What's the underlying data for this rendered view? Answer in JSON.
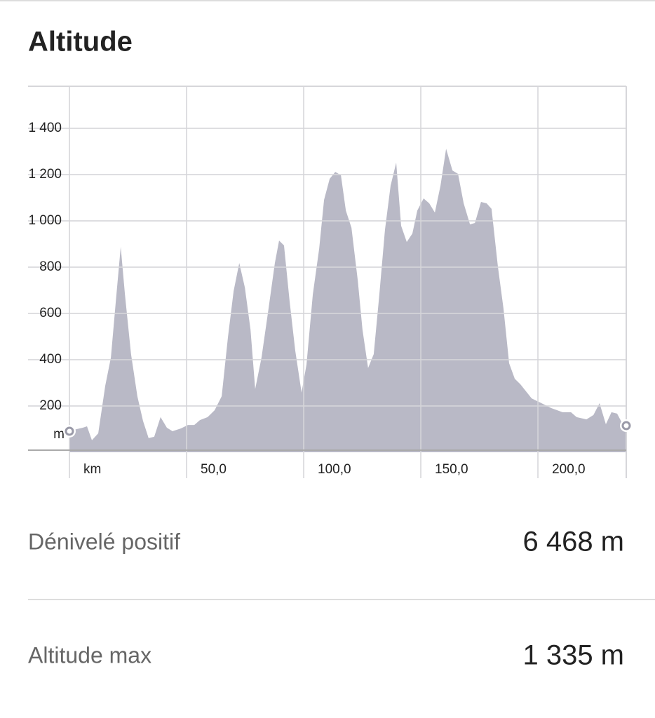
{
  "chart_data": {
    "type": "area",
    "title": "Altitude",
    "y_label": "m",
    "color": "#b9b9c6",
    "x": [
      0,
      1.8,
      5.7,
      7.5,
      9.6,
      12.3,
      15.3,
      17.7,
      19.8,
      21.9,
      23.7,
      26.3,
      29.0,
      31.4,
      33.8,
      36.2,
      38.9,
      41.6,
      44.0,
      47.6,
      50.6,
      53.3,
      55.7,
      59.0,
      62.0,
      65.0,
      67.7,
      70.1,
      72.5,
      74.9,
      77.3,
      79.3,
      82.0,
      85.0,
      87.7,
      89.5,
      91.6,
      94.0,
      96.4,
      99.1,
      101.2,
      103.9,
      106.6,
      108.7,
      111.1,
      113.5,
      115.9,
      118.0,
      120.4,
      123.1,
      125.1,
      127.5,
      129.9,
      132.3,
      134.7,
      137.1,
      139.5,
      141.6,
      144.0,
      146.4,
      148.5,
      151.2,
      153.6,
      156.0,
      158.4,
      160.8,
      163.5,
      165.9,
      168.3,
      171.0,
      173.1,
      175.7,
      178.1,
      180.2,
      182.9,
      185.3,
      187.7,
      190.1,
      192.5,
      197.3,
      200.9,
      205.7,
      210.5,
      214.1,
      216.5,
      220.7,
      223.7,
      226.3,
      229.0,
      231.4,
      233.8,
      236.2,
      237.7
    ],
    "values": [
      91,
      97,
      106,
      112,
      52,
      82,
      288,
      409,
      652,
      888,
      682,
      424,
      242,
      136,
      61,
      67,
      152,
      106,
      91,
      103,
      118,
      118,
      139,
      152,
      182,
      242,
      500,
      697,
      818,
      712,
      530,
      273,
      409,
      621,
      818,
      915,
      894,
      652,
      439,
      258,
      379,
      682,
      879,
      1091,
      1182,
      1212,
      1197,
      1045,
      970,
      742,
      530,
      364,
      424,
      682,
      961,
      1152,
      1252,
      979,
      909,
      945,
      1045,
      1097,
      1076,
      1036,
      1152,
      1312,
      1218,
      1203,
      1076,
      985,
      991,
      1082,
      1076,
      1052,
      803,
      621,
      385,
      318,
      294,
      233,
      215,
      191,
      173,
      173,
      152,
      142,
      161,
      212,
      121,
      173,
      167,
      121,
      115
    ],
    "xlim": [
      0,
      237.7
    ],
    "ylim": [
      0,
      1582
    ],
    "xticks": [
      {
        "value": 0,
        "label": "km"
      },
      {
        "value": 50,
        "label": "50,0"
      },
      {
        "value": 100,
        "label": "100,0"
      },
      {
        "value": 150,
        "label": "150,0"
      },
      {
        "value": 200,
        "label": "200,0"
      }
    ],
    "yticks": [
      {
        "value": 200,
        "label": "200"
      },
      {
        "value": 400,
        "label": "400"
      },
      {
        "value": 600,
        "label": "600"
      },
      {
        "value": 800,
        "label": "800"
      },
      {
        "value": 1000,
        "label": "1 000"
      },
      {
        "value": 1200,
        "label": "1 200"
      },
      {
        "value": 1400,
        "label": "1 400"
      }
    ],
    "grid": true
  },
  "stats": [
    {
      "label": "Dénivelé positif",
      "value": "6 468 m"
    },
    {
      "label": "Altitude max",
      "value": "1 335 m"
    }
  ]
}
